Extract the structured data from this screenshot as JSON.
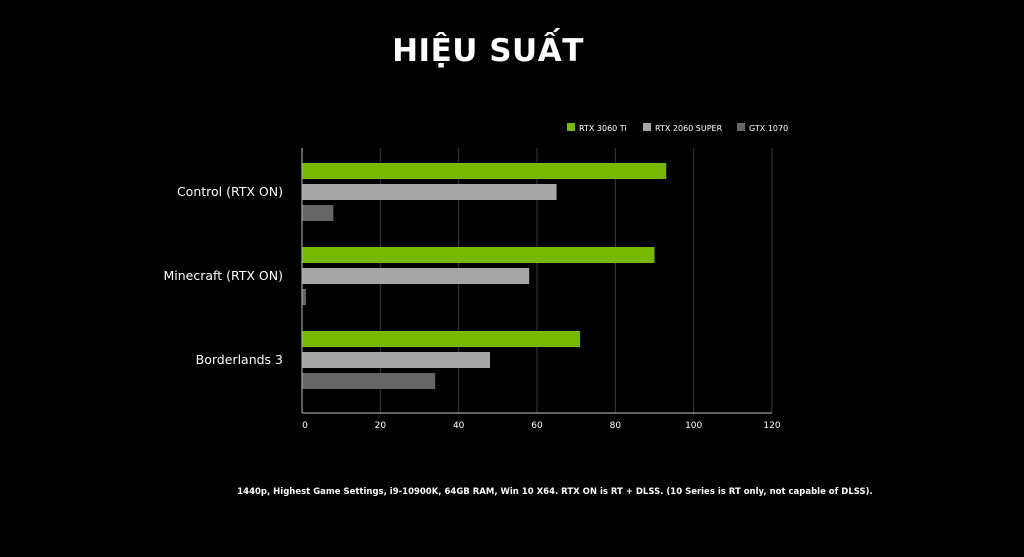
{
  "title": "HIỆU SUẤT",
  "footnote": "1440p, Highest Game Settings, i9-10900K, 64GB RAM, Win 10 X64. RTX ON is RT + DLSS. (10 Series is RT only, not capable of DLSS).",
  "colors": {
    "background": "#000000",
    "rtx3060ti": "#76b900",
    "rtx2060super": "#a6a6a6",
    "gtx1070": "#666666",
    "grid": "#3a3a3a",
    "axis": "#bfbfbf",
    "text": "#ffffff"
  },
  "chart_data": {
    "type": "bar",
    "orientation": "horizontal",
    "title": "HIỆU SUẤT",
    "xlabel": "",
    "ylabel": "",
    "categories": [
      "Control (RTX ON)",
      "Minecraft (RTX ON)",
      "Borderlands 3"
    ],
    "series": [
      {
        "name": "RTX 3060 Ti",
        "color": "#76b900",
        "values": [
          93,
          90,
          71
        ]
      },
      {
        "name": "RTX 2060 SUPER",
        "color": "#a6a6a6",
        "values": [
          65,
          58,
          48
        ]
      },
      {
        "name": "GTX 1070",
        "color": "#666666",
        "values": [
          8,
          1,
          34
        ]
      }
    ],
    "xlim": [
      0,
      120
    ],
    "xticks": [
      0,
      20,
      40,
      60,
      80,
      100,
      120
    ],
    "grid": true,
    "legend_position": "top-right"
  }
}
